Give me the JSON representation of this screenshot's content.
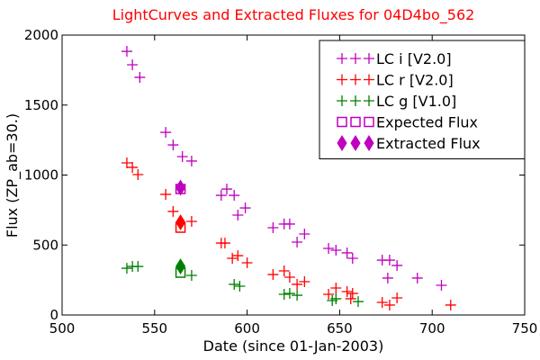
{
  "chart_data": {
    "type": "scatter",
    "title": "LightCurves and Extracted Fluxes for 04D4bo_562",
    "title_color": "#ff0000",
    "x_label": "Date (since 01-Jan-2003)",
    "y_label": "Flux (ZP_ab=30.)",
    "xlim": [
      500,
      750
    ],
    "xticks": [
      500,
      550,
      600,
      650,
      700,
      750
    ],
    "ylim": [
      0,
      2000
    ],
    "yticks": [
      0,
      500,
      1000,
      1500,
      2000
    ],
    "legend": "upper right",
    "series": [
      {
        "name": "LC i [V2.0]",
        "color": "#bf00bf",
        "marker": "plus",
        "x": [
          535,
          538,
          542,
          556,
          560,
          565,
          570,
          586,
          589,
          593,
          595,
          599,
          614,
          620,
          623,
          627,
          631,
          644,
          648,
          654,
          657,
          673,
          676,
          677,
          681,
          692,
          705
        ],
        "values": [
          1884,
          1788,
          1698,
          1305,
          1215,
          1132,
          1100,
          855,
          900,
          855,
          714,
          765,
          624,
          650,
          650,
          521,
          579,
          476,
          463,
          444,
          405,
          392,
          264,
          392,
          354,
          264,
          212
        ]
      },
      {
        "name": "LC r [V2.0]",
        "color": "#ff0000",
        "marker": "plus",
        "x": [
          535,
          538,
          541,
          556,
          560,
          570,
          586,
          588,
          592,
          595,
          600,
          614,
          620,
          623,
          627,
          631,
          644,
          648,
          654,
          656,
          657,
          673,
          677,
          681,
          710
        ],
        "values": [
          1087,
          1055,
          1003,
          862,
          740,
          669,
          514,
          514,
          405,
          424,
          373,
          289,
          315,
          270,
          219,
          238,
          148,
          193,
          167,
          116,
          154,
          90,
          71,
          122,
          71
        ]
      },
      {
        "name": "LC g [V1.0]",
        "color": "#008000",
        "marker": "plus",
        "x": [
          535,
          538,
          541,
          570,
          593,
          596,
          620,
          623,
          627,
          646,
          648,
          660
        ],
        "values": [
          334,
          347,
          347,
          283,
          219,
          206,
          148,
          154,
          141,
          103,
          116,
          96
        ]
      },
      {
        "name": "Expected Flux",
        "color": "#bf00bf",
        "marker": "square",
        "point_colors": [
          "#bf00bf",
          "#ff0000",
          "#008000"
        ],
        "x": [
          564,
          564,
          564
        ],
        "values": [
          900,
          624,
          302
        ]
      },
      {
        "name": "Extracted Flux",
        "color": "#bf00bf",
        "marker": "diamond",
        "point_colors": [
          "#bf00bf",
          "#ff0000",
          "#008000"
        ],
        "x": [
          564,
          564,
          564
        ],
        "values": [
          910,
          662,
          347
        ]
      }
    ]
  }
}
